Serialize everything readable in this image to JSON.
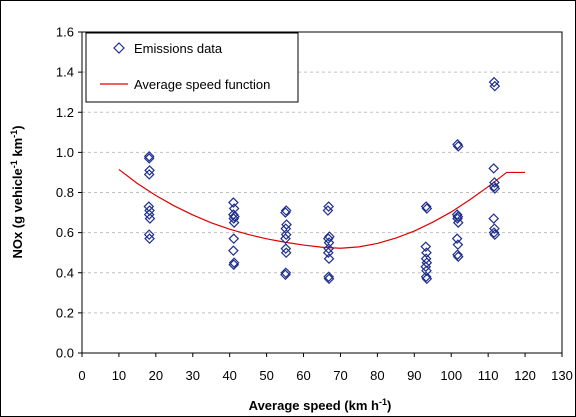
{
  "chart_data": {
    "type": "scatter",
    "xlabel": "Average speed (km h",
    "xlabel_sup": "-1",
    "xlabel_end": ")",
    "ylabel": "NOx (g vehicle",
    "ylabel_sup1": "-1",
    "ylabel_mid": " km",
    "ylabel_sup2": "-1",
    "ylabel_end": ")",
    "xlim": [
      0,
      130
    ],
    "ylim": [
      0,
      1.6
    ],
    "xticks": [
      "0",
      "10",
      "20",
      "30",
      "40",
      "50",
      "60",
      "70",
      "80",
      "90",
      "100",
      "110",
      "120",
      "130"
    ],
    "yticks": [
      "0.0",
      "0.2",
      "0.4",
      "0.6",
      "0.8",
      "1.0",
      "1.2",
      "1.4",
      "1.6"
    ],
    "grid": true,
    "legend_position": "top-left",
    "series": [
      {
        "name": "Emissions data",
        "kind": "scatter",
        "marker": "diamond",
        "color": "#1f2f8f",
        "points": [
          [
            18.2,
            0.98
          ],
          [
            18.2,
            0.97
          ],
          [
            18.3,
            0.91
          ],
          [
            18.2,
            0.89
          ],
          [
            18.1,
            0.73
          ],
          [
            18.3,
            0.71
          ],
          [
            18.2,
            0.69
          ],
          [
            18.4,
            0.67
          ],
          [
            18.2,
            0.59
          ],
          [
            18.3,
            0.57
          ],
          [
            41.0,
            0.75
          ],
          [
            41.2,
            0.72
          ],
          [
            41.0,
            0.69
          ],
          [
            41.3,
            0.68
          ],
          [
            41.1,
            0.67
          ],
          [
            41.2,
            0.65
          ],
          [
            41.1,
            0.57
          ],
          [
            41.0,
            0.51
          ],
          [
            41.2,
            0.45
          ],
          [
            41.1,
            0.44
          ],
          [
            55.3,
            0.71
          ],
          [
            55.1,
            0.7
          ],
          [
            55.4,
            0.64
          ],
          [
            55.2,
            0.62
          ],
          [
            55.3,
            0.59
          ],
          [
            55.1,
            0.57
          ],
          [
            55.2,
            0.52
          ],
          [
            55.3,
            0.5
          ],
          [
            55.2,
            0.4
          ],
          [
            55.1,
            0.39
          ],
          [
            66.8,
            0.73
          ],
          [
            66.6,
            0.71
          ],
          [
            67.0,
            0.58
          ],
          [
            66.7,
            0.57
          ],
          [
            66.9,
            0.55
          ],
          [
            66.8,
            0.52
          ],
          [
            66.7,
            0.5
          ],
          [
            66.9,
            0.47
          ],
          [
            66.8,
            0.38
          ],
          [
            66.9,
            0.37
          ],
          [
            93.2,
            0.73
          ],
          [
            93.4,
            0.72
          ],
          [
            93.1,
            0.53
          ],
          [
            93.3,
            0.5
          ],
          [
            93.2,
            0.47
          ],
          [
            93.4,
            0.45
          ],
          [
            93.1,
            0.43
          ],
          [
            93.3,
            0.41
          ],
          [
            93.2,
            0.38
          ],
          [
            93.4,
            0.37
          ],
          [
            101.7,
            1.04
          ],
          [
            101.9,
            1.03
          ],
          [
            101.6,
            0.69
          ],
          [
            101.8,
            0.68
          ],
          [
            101.7,
            0.67
          ],
          [
            101.9,
            0.65
          ],
          [
            101.6,
            0.57
          ],
          [
            101.8,
            0.54
          ],
          [
            101.7,
            0.49
          ],
          [
            101.9,
            0.48
          ],
          [
            111.6,
            1.35
          ],
          [
            111.8,
            1.33
          ],
          [
            111.5,
            0.92
          ],
          [
            111.7,
            0.85
          ],
          [
            111.6,
            0.83
          ],
          [
            111.8,
            0.82
          ],
          [
            111.5,
            0.67
          ],
          [
            111.7,
            0.62
          ],
          [
            111.6,
            0.6
          ],
          [
            111.8,
            0.59
          ]
        ]
      },
      {
        "name": "Average speed function",
        "kind": "line",
        "color": "#e00000",
        "x": [
          10,
          15,
          20,
          25,
          30,
          35,
          40,
          45,
          50,
          55,
          60,
          65,
          70,
          75,
          80,
          85,
          90,
          95,
          100,
          105,
          110,
          115,
          120
        ],
        "y": [
          0.915,
          0.845,
          0.785,
          0.733,
          0.688,
          0.649,
          0.617,
          0.591,
          0.569,
          0.552,
          0.538,
          0.527,
          0.522,
          0.529,
          0.546,
          0.573,
          0.608,
          0.652,
          0.703,
          0.763,
          0.829,
          0.9,
          0.9
        ]
      }
    ]
  }
}
